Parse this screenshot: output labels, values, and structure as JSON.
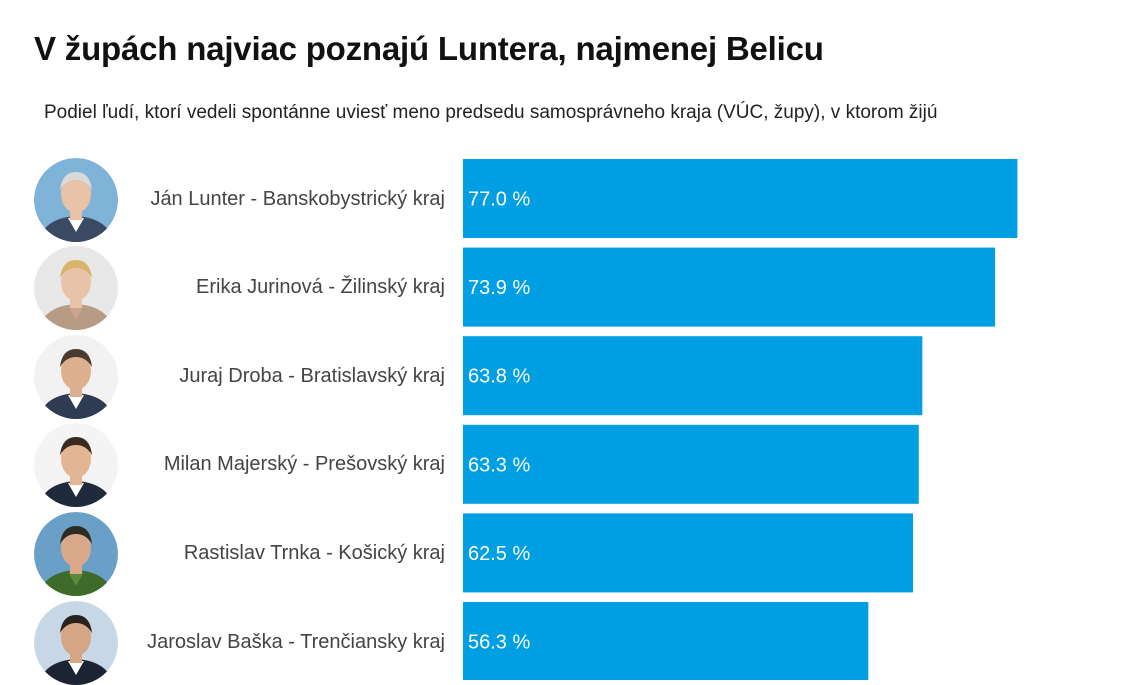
{
  "header": {
    "title": "V župách najviac poznajú Luntera, najmenej Belicu",
    "subtitle": "Podiel ľudí, ktorí vedeli spontánne uviesť meno predsedu samosprávneho kraja (VÚC, župy), v ktorom žijú"
  },
  "chart_data": {
    "type": "bar",
    "orientation": "horizontal",
    "categories": [
      "Ján Lunter - Banskobystrický kraj",
      "Erika Jurinová - Žilinský kraj",
      "Juraj Droba - Bratislavský kraj",
      "Milan Majerský - Prešovský kraj",
      "Rastislav Trnka - Košický kraj",
      "Jaroslav Baška - Trenčiansky kraj"
    ],
    "values": [
      77.0,
      73.9,
      63.8,
      63.3,
      62.5,
      56.3
    ],
    "value_labels": [
      "77.0 %",
      "73.9 %",
      "63.8 %",
      "63.3 %",
      "62.5 %",
      "56.3 %"
    ],
    "xlim": [
      0,
      100
    ],
    "bar_color": "#009fe3",
    "value_label_color": "#ffffff",
    "grid": false,
    "legend": "none"
  },
  "avatars": [
    {
      "icon": "portrait-photo",
      "bg": "#7fb3d8",
      "skin": "#e8c2a6",
      "hair": "#d9d9d9",
      "shirt": "#ffffff",
      "suit": "#3a4a63"
    },
    {
      "icon": "portrait-photo",
      "bg": "#e8e8e8",
      "skin": "#e9c3a8",
      "hair": "#d8b56a",
      "shirt": "#c9a48a",
      "suit": "#b89b84"
    },
    {
      "icon": "portrait-photo",
      "bg": "#f2f2f2",
      "skin": "#dcb08f",
      "hair": "#4a3b30",
      "shirt": "#ffffff",
      "suit": "#2f3b52"
    },
    {
      "icon": "portrait-photo",
      "bg": "#f4f4f4",
      "skin": "#e2b693",
      "hair": "#3a2a20",
      "shirt": "#ffffff",
      "suit": "#1f2a3c"
    },
    {
      "icon": "portrait-photo",
      "bg": "#6aa0c8",
      "skin": "#d9a98a",
      "hair": "#2e2a26",
      "shirt": "#5c8a3a",
      "suit": "#3f6b2a"
    },
    {
      "icon": "portrait-photo",
      "bg": "#c8d7e6",
      "skin": "#d6a583",
      "hair": "#2a221d",
      "shirt": "#ffffff",
      "suit": "#1c2433"
    }
  ]
}
